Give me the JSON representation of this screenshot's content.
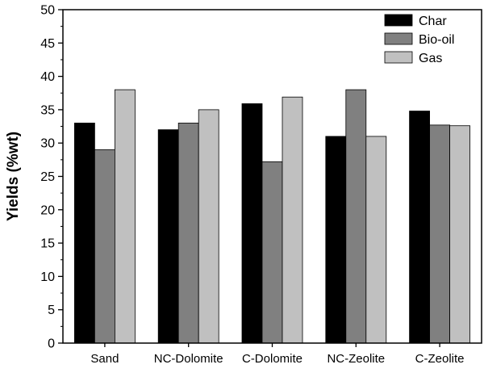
{
  "chart_data": {
    "type": "bar",
    "title": "",
    "xlabel": "",
    "ylabel": "Yields (%wt)",
    "ylim": [
      0,
      50
    ],
    "yticks": [
      0,
      5,
      10,
      15,
      20,
      25,
      30,
      35,
      40,
      45,
      50
    ],
    "grid": false,
    "legend_position": "top-right",
    "categories": [
      "Sand",
      "NC-Dolomite",
      "C-Dolomite",
      "NC-Zeolite",
      "C-Zeolite"
    ],
    "series": [
      {
        "name": "Char",
        "color": "#000000",
        "values": [
          33.0,
          32.0,
          35.9,
          31.0,
          34.8
        ]
      },
      {
        "name": "Bio-oil",
        "color": "#808080",
        "values": [
          29.0,
          33.0,
          27.2,
          38.0,
          32.7
        ]
      },
      {
        "name": "Gas",
        "color": "#c0c0c0",
        "values": [
          38.0,
          35.0,
          36.9,
          31.0,
          32.6
        ]
      }
    ]
  }
}
